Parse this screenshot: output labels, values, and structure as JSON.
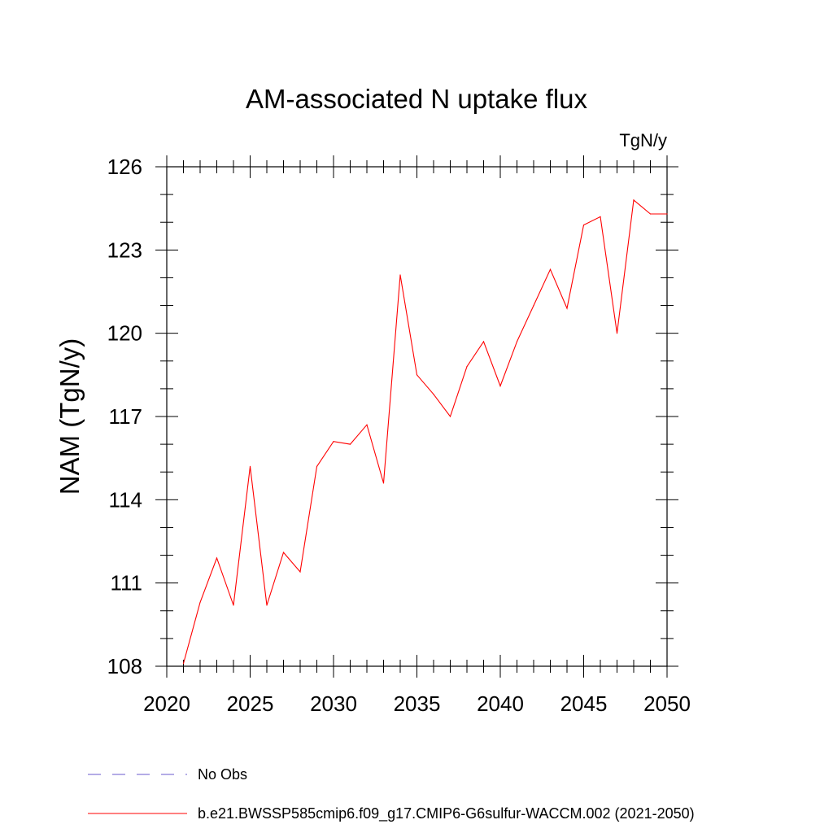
{
  "chart_data": {
    "type": "line",
    "title": "AM-associated N uptake flux",
    "units_label": "TgN/y",
    "xlabel": "",
    "ylabel": "NAM  (TgN/y)",
    "xlim": [
      2020,
      2050
    ],
    "ylim": [
      108,
      126
    ],
    "x_ticks": [
      2020,
      2025,
      2030,
      2035,
      2040,
      2045,
      2050
    ],
    "y_ticks": [
      108,
      111,
      114,
      117,
      120,
      123,
      126
    ],
    "x_minor_step": 1,
    "y_minor_step": 1,
    "grid": false,
    "legend_position": "bottom",
    "series": [
      {
        "name": "b.e21.BWSSP585cmip6.f09_g17.CMIP6-G6sulfur-WACCM.002 (2021-2050)",
        "color": "#ff0000",
        "line_style": "solid",
        "x": [
          2021,
          2022,
          2023,
          2024,
          2025,
          2026,
          2027,
          2028,
          2029,
          2030,
          2031,
          2032,
          2033,
          2034,
          2035,
          2036,
          2037,
          2038,
          2039,
          2040,
          2041,
          2042,
          2043,
          2044,
          2045,
          2046,
          2047,
          2048,
          2049,
          2050
        ],
        "values": [
          108.1,
          110.3,
          111.9,
          110.2,
          115.2,
          110.2,
          112.1,
          111.4,
          115.2,
          116.1,
          116.0,
          116.7,
          114.6,
          122.1,
          118.5,
          117.8,
          117.0,
          118.8,
          119.7,
          118.1,
          119.7,
          121.0,
          122.3,
          120.9,
          123.9,
          124.2,
          120.0,
          124.8,
          124.3,
          124.3
        ]
      }
    ],
    "legend": [
      {
        "label": "No Obs",
        "color": "#6a5acd",
        "line_style": "dashed"
      },
      {
        "label": "b.e21.BWSSP585cmip6.f09_g17.CMIP6-G6sulfur-WACCM.002 (2021-2050)",
        "color": "#ff0000",
        "line_style": "solid"
      }
    ]
  }
}
